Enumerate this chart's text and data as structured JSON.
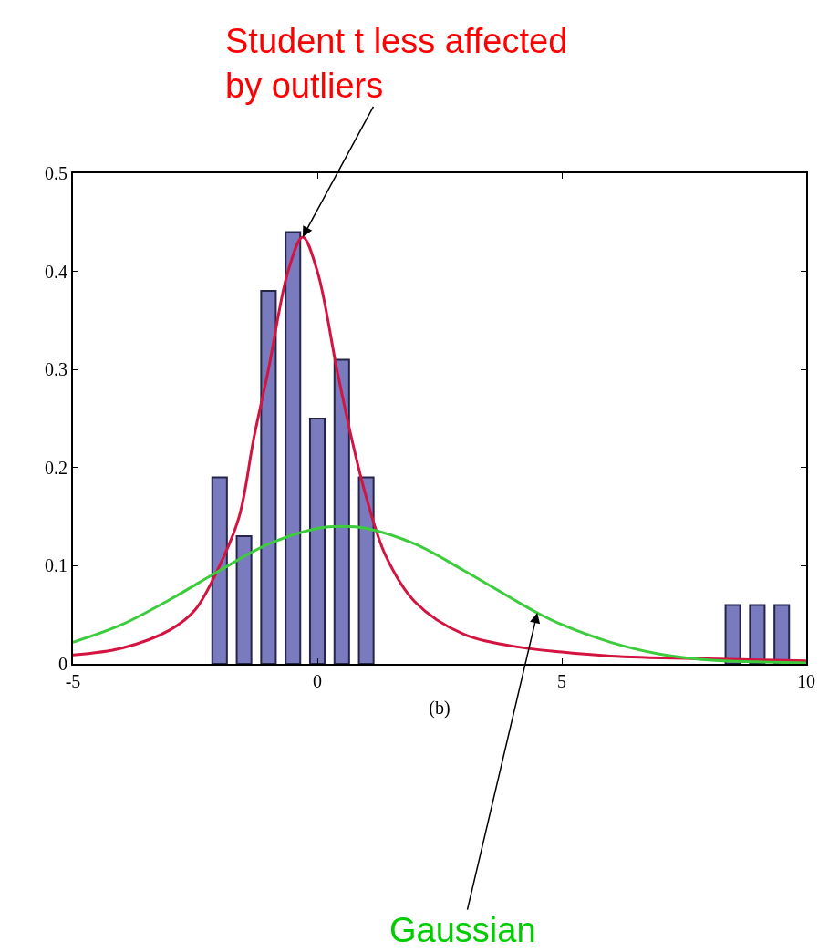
{
  "chart_data": {
    "type": "bar",
    "xlabel": "(b)",
    "xlim": [
      -5,
      10
    ],
    "xticks": [
      -5,
      0,
      5,
      10
    ],
    "ylim": [
      0,
      0.5
    ],
    "yticks": [
      0,
      0.1,
      0.2,
      0.3,
      0.4,
      0.5
    ],
    "annotations": [
      {
        "text": "Student t less affected\nby outliers",
        "x": -0.3,
        "y": 0.435
      },
      {
        "text": "Gaussian",
        "x": 4.5,
        "y": 0.052
      }
    ],
    "series": [
      {
        "color": "#7a7abf",
        "x": [
          -2,
          -1.5,
          -1,
          -0.5,
          0,
          0.5,
          1,
          8.5,
          9,
          9.5
        ],
        "values": [
          0.19,
          0.13,
          0.38,
          0.44,
          0.25,
          0.31,
          0.19,
          0.06,
          0.06,
          0.06
        ]
      },
      {
        "type": "line",
        "color": "#d41440",
        "x": [
          -5,
          -4,
          -3,
          -2.5,
          -2,
          -1.6,
          -1.3,
          -1,
          -0.6,
          -0.3,
          0,
          0.4,
          0.7,
          1,
          1.4,
          2,
          3,
          4,
          5,
          6,
          8,
          10
        ],
        "values": [
          0.009,
          0.016,
          0.035,
          0.055,
          0.1,
          0.15,
          0.23,
          0.3,
          0.4,
          0.435,
          0.4,
          0.3,
          0.23,
          0.17,
          0.11,
          0.063,
          0.03,
          0.018,
          0.012,
          0.008,
          0.005,
          0.003
        ]
      },
      {
        "type": "line",
        "color": "#3ccc3c",
        "x": [
          -5,
          -4,
          -3,
          -2,
          -1,
          0,
          0.5,
          1,
          2,
          3,
          4,
          4.5,
          5,
          6,
          7,
          8,
          9,
          10
        ],
        "values": [
          0.022,
          0.04,
          0.066,
          0.095,
          0.122,
          0.138,
          0.14,
          0.138,
          0.122,
          0.095,
          0.066,
          0.052,
          0.04,
          0.022,
          0.01,
          0.004,
          0.002,
          0.001
        ]
      }
    ]
  }
}
